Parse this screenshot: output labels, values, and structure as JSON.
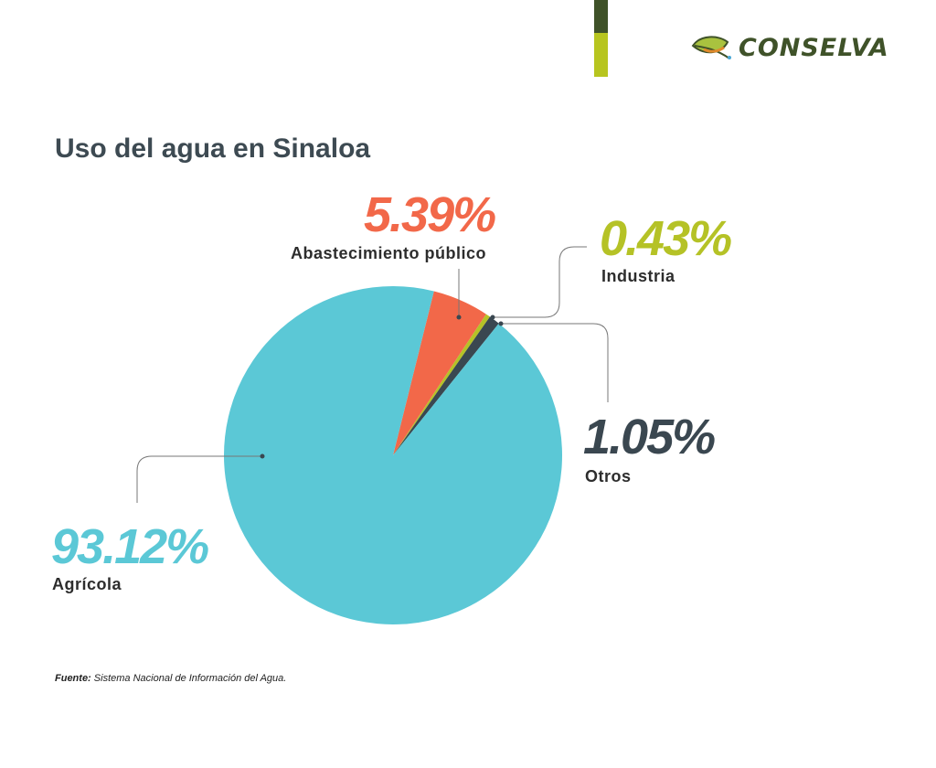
{
  "brand": {
    "name": "CONSELVA",
    "colors": {
      "dark": "#3f5229",
      "light": "#b7c51f"
    }
  },
  "title": "Uso del agua en Sinaloa",
  "source": {
    "label": "Fuente:",
    "text": "Sistema Nacional de Información del Agua."
  },
  "chart_data": {
    "type": "pie",
    "title": "Uso del agua en Sinaloa",
    "slices": [
      {
        "label": "Abastecimiento público",
        "value": 5.39,
        "display": "5.39%",
        "color": "#f26849"
      },
      {
        "label": "Industria",
        "value": 0.43,
        "display": "0.43%",
        "color": "#b5c226"
      },
      {
        "label": "Otros",
        "value": 1.05,
        "display": "1.05%",
        "color": "#3a4750"
      },
      {
        "label": "Agrícola",
        "value": 93.12,
        "display": "93.12%",
        "color": "#5bc8d6"
      }
    ],
    "legend": "callout labels"
  }
}
